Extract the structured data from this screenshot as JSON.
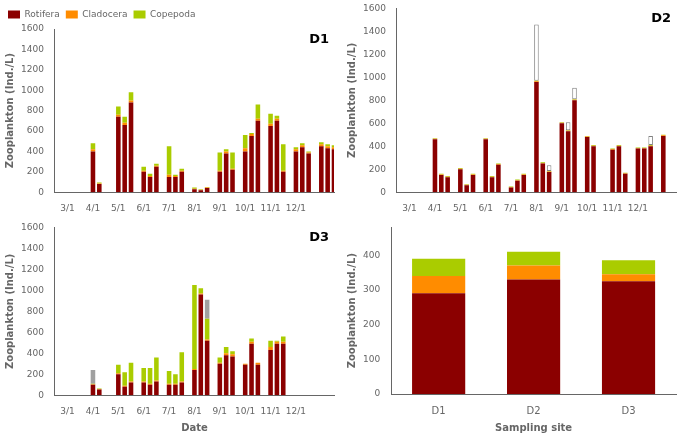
{
  "chart_data": [
    {
      "type": "bar",
      "stacked": true,
      "grid": false,
      "legend": "upper left",
      "annotations": [
        "D1"
      ],
      "ylabel": "Zooplankton (Ind./L)",
      "xlim": [
        -0.5,
        10.5
      ],
      "xticks": [
        {
          "value": 0,
          "label": "3/1"
        },
        {
          "value": 1,
          "label": "4/1"
        },
        {
          "value": 2,
          "label": "5/1"
        },
        {
          "value": 3,
          "label": "6/1"
        },
        {
          "value": 4,
          "label": "7/1"
        },
        {
          "value": 5,
          "label": "8/1"
        },
        {
          "value": 6,
          "label": "9/1"
        },
        {
          "value": 7,
          "label": "10/1"
        },
        {
          "value": 8,
          "label": "11/1"
        },
        {
          "value": 9,
          "label": "12/1"
        }
      ],
      "ylim": [
        0,
        1600
      ],
      "yticks": [
        0,
        200,
        400,
        600,
        800,
        1000,
        1200,
        1400,
        1600
      ],
      "x": [
        1.0,
        1.25,
        2.0,
        2.25,
        2.5,
        3.0,
        3.25,
        3.5,
        4.0,
        4.25,
        4.5,
        5.0,
        5.25,
        5.5,
        6.0,
        6.25,
        6.5,
        7.0,
        7.25,
        7.5,
        8.0,
        8.25,
        8.5,
        9.0,
        9.25,
        9.5,
        10.0,
        10.25,
        10.5
      ],
      "series": [
        {
          "name": "Rotifera",
          "color": "#8B0000",
          "values": [
            400,
            80,
            740,
            660,
            880,
            200,
            150,
            250,
            150,
            150,
            200,
            30,
            20,
            40,
            200,
            380,
            220,
            400,
            550,
            700,
            650,
            700,
            200,
            400,
            440,
            380,
            450,
            430,
            420
          ]
        },
        {
          "name": "Cladocera",
          "color": "#FF8C00",
          "values": [
            20,
            5,
            20,
            20,
            20,
            10,
            10,
            10,
            20,
            10,
            10,
            5,
            5,
            5,
            10,
            20,
            10,
            30,
            20,
            20,
            20,
            20,
            10,
            20,
            20,
            10,
            20,
            20,
            20
          ]
        },
        {
          "name": "Copepoda",
          "color": "#AACC00",
          "values": [
            60,
            10,
            80,
            60,
            80,
            40,
            20,
            20,
            280,
            10,
            20,
            10,
            5,
            5,
            180,
            20,
            160,
            130,
            10,
            140,
            100,
            30,
            260,
            20,
            20,
            10,
            20,
            20,
            20
          ]
        }
      ]
    },
    {
      "type": "bar",
      "stacked": true,
      "grid": false,
      "annotations": [
        "D2"
      ],
      "ylabel": "Zooplankton (Ind./L)",
      "xlim": [
        -0.5,
        10.5
      ],
      "xticks": [
        {
          "value": 0,
          "label": "3/1"
        },
        {
          "value": 1,
          "label": "4/1"
        },
        {
          "value": 2,
          "label": "5/1"
        },
        {
          "value": 3,
          "label": "6/1"
        },
        {
          "value": 4,
          "label": "7/1"
        },
        {
          "value": 5,
          "label": "8/1"
        },
        {
          "value": 6,
          "label": "9/1"
        },
        {
          "value": 7,
          "label": "10/1"
        },
        {
          "value": 8,
          "label": "11/1"
        },
        {
          "value": 9,
          "label": "12/1"
        }
      ],
      "ylim": [
        0,
        1600
      ],
      "yticks": [
        0,
        200,
        400,
        600,
        800,
        1000,
        1200,
        1400,
        1600
      ],
      "x": [
        1.0,
        1.25,
        1.5,
        2.0,
        2.25,
        2.5,
        3.0,
        3.25,
        3.5,
        4.0,
        4.25,
        4.5,
        5.0,
        5.25,
        5.5,
        6.0,
        6.25,
        6.5,
        7.0,
        7.25,
        8.0,
        8.25,
        8.5,
        9.0,
        9.25,
        9.5,
        10.0
      ],
      "series": [
        {
          "name": "Rotifera",
          "color": "#8B0000",
          "values": [
            460,
            150,
            130,
            200,
            60,
            150,
            460,
            130,
            240,
            40,
            100,
            150,
            960,
            250,
            175,
            600,
            530,
            800,
            480,
            400,
            370,
            400,
            160,
            380,
            380,
            400,
            490
          ]
        },
        {
          "name": "Cladocera",
          "color": "#FF8C00",
          "values": [
            5,
            5,
            5,
            5,
            5,
            5,
            5,
            5,
            5,
            5,
            5,
            5,
            5,
            5,
            5,
            5,
            5,
            5,
            5,
            5,
            5,
            5,
            5,
            5,
            5,
            5,
            5
          ]
        },
        {
          "name": "Copepoda",
          "color": "#AACC00",
          "values": [
            5,
            5,
            5,
            5,
            5,
            5,
            5,
            5,
            5,
            5,
            5,
            5,
            5,
            5,
            5,
            5,
            5,
            5,
            5,
            5,
            5,
            5,
            5,
            5,
            5,
            5,
            5
          ]
        },
        {
          "color": "#FFFFFF",
          "values": [
            0,
            0,
            0,
            0,
            0,
            0,
            0,
            0,
            0,
            0,
            0,
            0,
            490,
            0,
            50,
            0,
            70,
            100,
            0,
            0,
            0,
            0,
            0,
            0,
            0,
            80,
            0
          ]
        }
      ]
    },
    {
      "type": "bar",
      "stacked": true,
      "grid": false,
      "annotations": [
        "D3"
      ],
      "ylabel": "Zooplankton (Ind./L)",
      "xlabel": "Date",
      "xlim": [
        -0.5,
        10.5
      ],
      "xticks": [
        {
          "value": 0,
          "label": "3/1"
        },
        {
          "value": 1,
          "label": "4/1"
        },
        {
          "value": 2,
          "label": "5/1"
        },
        {
          "value": 3,
          "label": "6/1"
        },
        {
          "value": 4,
          "label": "7/1"
        },
        {
          "value": 5,
          "label": "8/1"
        },
        {
          "value": 6,
          "label": "9/1"
        },
        {
          "value": 7,
          "label": "10/1"
        },
        {
          "value": 8,
          "label": "11/1"
        },
        {
          "value": 9,
          "label": "12/1"
        }
      ],
      "ylim": [
        0,
        1600
      ],
      "yticks": [
        0,
        200,
        400,
        600,
        800,
        1000,
        1200,
        1400,
        1600
      ],
      "x": [
        1.0,
        1.25,
        2.0,
        2.25,
        2.5,
        3.0,
        3.25,
        3.5,
        4.0,
        4.25,
        4.5,
        5.0,
        5.25,
        5.5,
        6.0,
        6.25,
        6.5,
        7.0,
        7.25,
        7.5,
        8.0,
        8.25,
        8.5
      ],
      "series": [
        {
          "name": "Rotifera",
          "color": "#8B0000",
          "values": [
            100,
            55,
            200,
            80,
            120,
            120,
            100,
            130,
            100,
            100,
            120,
            240,
            960,
            520,
            300,
            380,
            370,
            290,
            490,
            290,
            430,
            490,
            490
          ]
        },
        {
          "name": "Cladocera",
          "color": "#FF8C00",
          "values": [
            5,
            5,
            10,
            10,
            10,
            10,
            10,
            10,
            10,
            10,
            10,
            10,
            10,
            10,
            10,
            20,
            20,
            10,
            20,
            20,
            30,
            20,
            20
          ]
        },
        {
          "name": "Copepoda",
          "color": "#AACC00",
          "values": [
            5,
            5,
            80,
            130,
            180,
            130,
            150,
            220,
            120,
            90,
            280,
            800,
            50,
            200,
            50,
            60,
            30,
            0,
            30,
            0,
            60,
            10,
            50
          ]
        },
        {
          "color": "#A0A0A0",
          "values": [
            130,
            0,
            0,
            0,
            0,
            0,
            0,
            0,
            0,
            0,
            0,
            0,
            0,
            180,
            0,
            0,
            0,
            0,
            0,
            0,
            0,
            0,
            0
          ]
        }
      ]
    },
    {
      "type": "bar",
      "stacked": true,
      "grid": false,
      "ylabel": "Zooplankton (Ind./L)",
      "xlabel": "Sampling site",
      "categories": [
        "D1",
        "D2",
        "D3"
      ],
      "ylim": [
        0,
        480
      ],
      "yticks": [
        0,
        100,
        200,
        300,
        400
      ],
      "series": [
        {
          "name": "Rotifera",
          "color": "#8B0000",
          "values": [
            290,
            330,
            325
          ]
        },
        {
          "name": "Cladocera",
          "color": "#FF8C00",
          "values": [
            50,
            40,
            20
          ]
        },
        {
          "name": "Copepoda",
          "color": "#AACC00",
          "values": [
            50,
            40,
            40
          ]
        }
      ]
    }
  ]
}
